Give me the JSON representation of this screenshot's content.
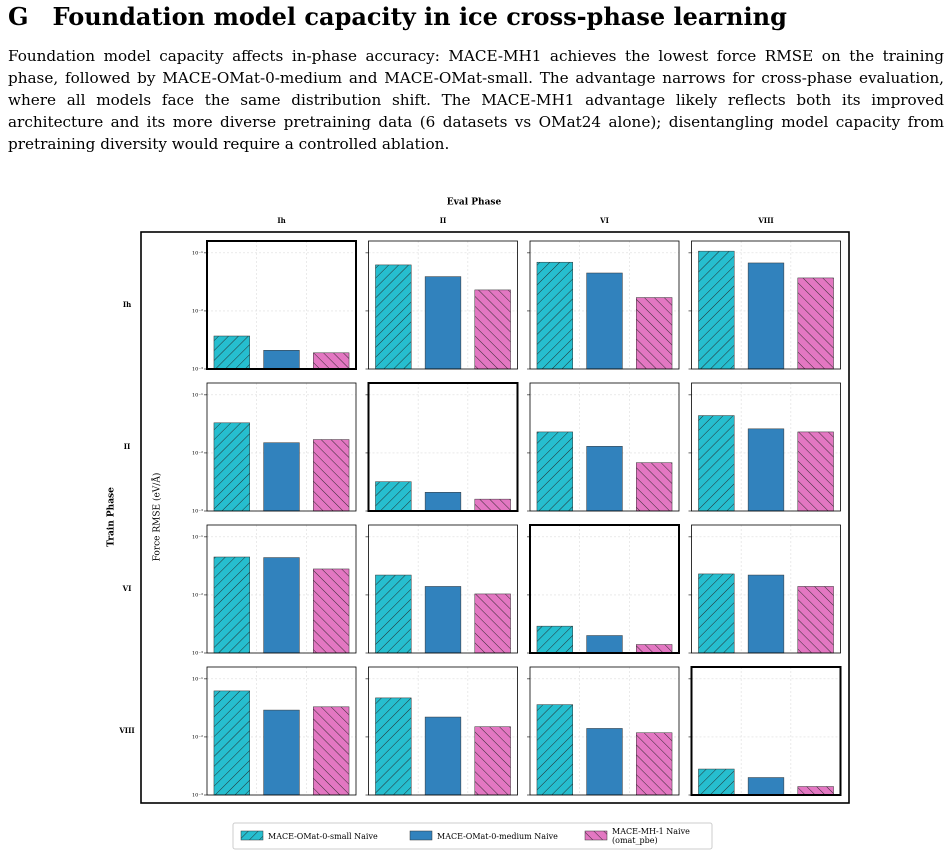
{
  "header": {
    "label": "G",
    "title": "Foundation model capacity in ice cross-phase learning",
    "text": "Foundation model capacity affects in-phase accuracy: MACE-MH1 achieves the lowest force RMSE on the training phase, followed by MACE-OMat-0-medium and MACE-OMat-small. The advantage narrows for cross-phase evaluation, where all models face the same distribution shift. The MACE-MH1 advantage likely reflects both its improved architecture and its more diverse pretraining data (6 datasets vs OMat24 alone); disentangling model capacity from pretraining diversity would require a controlled ablation."
  },
  "chart_data": {
    "type": "bar",
    "log": true,
    "grid": true,
    "col_title": "Eval Phase",
    "row_title": "Train Phase",
    "ylabel": "Force RMSE (eV/Å)",
    "cols": [
      "Ih",
      "II",
      "VI",
      "VIII"
    ],
    "rows": [
      "Ih",
      "II",
      "VI",
      "VIII"
    ],
    "ylim": [
      0.001,
      0.16
    ],
    "yticks": [
      {
        "value": 0.001,
        "label": "10⁻³"
      },
      {
        "value": 0.01,
        "label": "10⁻²"
      },
      {
        "value": 0.1,
        "label": "10⁻¹"
      }
    ],
    "series": [
      {
        "name": "MACE-OMat-0-small Naive",
        "color": "#26becf",
        "hatch": "/",
        "values": [
          [
            0.0037,
            0.062,
            0.069,
            0.107
          ],
          [
            0.033,
            0.0032,
            0.023,
            0.044
          ],
          [
            0.045,
            0.022,
            0.0029,
            0.023
          ],
          [
            0.062,
            0.047,
            0.036,
            0.0028
          ]
        ]
      },
      {
        "name": "MACE-OMat-0-medium Naive",
        "color": "#3182bd",
        "hatch": "",
        "values": [
          [
            0.0021,
            0.039,
            0.045,
            0.067
          ],
          [
            0.015,
            0.0021,
            0.013,
            0.026
          ],
          [
            0.044,
            0.014,
            0.002,
            0.022
          ],
          [
            0.029,
            0.022,
            0.014,
            0.002
          ]
        ]
      },
      {
        "name": "MACE-MH-1 Naive\n(omat_pbe)",
        "color": "#e377c2",
        "hatch": "\\",
        "values": [
          [
            0.0019,
            0.023,
            0.017,
            0.037
          ],
          [
            0.017,
            0.0016,
            0.0068,
            0.023
          ],
          [
            0.028,
            0.0104,
            0.0014,
            0.014
          ],
          [
            0.033,
            0.015,
            0.0118,
            0.0014
          ]
        ]
      }
    ]
  }
}
